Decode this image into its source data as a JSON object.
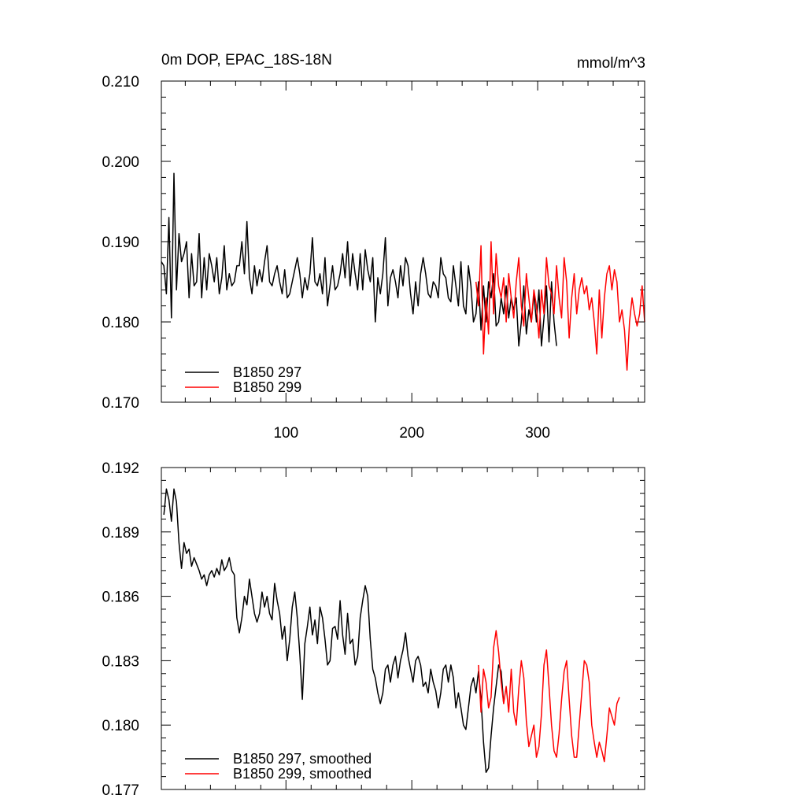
{
  "chart_data": [
    {
      "type": "line",
      "title": "0m DOP, EPAC_18S-18N",
      "units": "mmol/m^3",
      "xlim": [
        1,
        385
      ],
      "ylim": [
        0.17,
        0.21
      ],
      "xticks": [
        100,
        200,
        300
      ],
      "xtick_labels": [
        "100",
        "200",
        "300"
      ],
      "yticks": [
        0.17,
        0.18,
        0.19,
        0.2,
        0.21
      ],
      "ytick_labels": [
        "0.170",
        "0.180",
        "0.190",
        "0.200",
        "0.210"
      ],
      "legend_position": "bottom-left",
      "series": [
        {
          "name": "B1850 297",
          "color": "#000000",
          "x_start": 1,
          "x_step": 2,
          "values": [
            0.1875,
            0.187,
            0.1835,
            0.193,
            0.1805,
            0.1985,
            0.184,
            0.191,
            0.1875,
            0.1885,
            0.19,
            0.183,
            0.1885,
            0.1845,
            0.185,
            0.191,
            0.183,
            0.188,
            0.184,
            0.1885,
            0.187,
            0.185,
            0.188,
            0.1835,
            0.1855,
            0.1895,
            0.184,
            0.186,
            0.1845,
            0.185,
            0.187,
            0.187,
            0.19,
            0.186,
            0.1925,
            0.1855,
            0.1835,
            0.187,
            0.1845,
            0.1865,
            0.185,
            0.1875,
            0.1895,
            0.185,
            0.1845,
            0.186,
            0.187,
            0.185,
            0.1835,
            0.1865,
            0.183,
            0.1835,
            0.185,
            0.1865,
            0.188,
            0.186,
            0.183,
            0.1855,
            0.184,
            0.186,
            0.1905,
            0.185,
            0.1845,
            0.186,
            0.1835,
            0.188,
            0.182,
            0.1845,
            0.187,
            0.184,
            0.1845,
            0.186,
            0.1885,
            0.1855,
            0.19,
            0.1845,
            0.1885,
            0.186,
            0.184,
            0.1885,
            0.184,
            0.189,
            0.1865,
            0.185,
            0.188,
            0.18,
            0.1855,
            0.1835,
            0.186,
            0.1905,
            0.182,
            0.1855,
            0.1865,
            0.185,
            0.183,
            0.187,
            0.1845,
            0.188,
            0.187,
            0.1835,
            0.181,
            0.185,
            0.182,
            0.186,
            0.188,
            0.186,
            0.1835,
            0.183,
            0.185,
            0.1845,
            0.183,
            0.188,
            0.186,
            0.1855,
            0.183,
            0.1825,
            0.187,
            0.1845,
            0.182,
            0.1875,
            0.182,
            0.181,
            0.187,
            0.1845,
            0.18,
            0.181,
            0.185,
            0.179,
            0.1845,
            0.18,
            0.185,
            0.183,
            0.186,
            0.1795,
            0.18,
            0.183,
            0.181,
            0.1845,
            0.1805,
            0.183,
            0.1815,
            0.183,
            0.177,
            0.18,
            0.1845,
            0.1785,
            0.1815,
            0.18,
            0.1835,
            0.18,
            0.184,
            0.177,
            0.1805,
            0.1845,
            0.1775,
            0.185,
            0.18,
            0.177
          ]
        },
        {
          "name": "B1850 299",
          "color": "#ff0000",
          "x_start": 251,
          "x_step": 2,
          "values": [
            0.185,
            0.182,
            0.1895,
            0.176,
            0.183,
            0.1785,
            0.19,
            0.181,
            0.1885,
            0.1845,
            0.183,
            0.1855,
            0.18,
            0.186,
            0.183,
            0.1805,
            0.185,
            0.188,
            0.182,
            0.1795,
            0.186,
            0.183,
            0.18,
            0.184,
            0.182,
            0.178,
            0.184,
            0.181,
            0.188,
            0.1845,
            0.1835,
            0.181,
            0.187,
            0.183,
            0.1805,
            0.188,
            0.185,
            0.178,
            0.183,
            0.186,
            0.181,
            0.184,
            0.1855,
            0.1835,
            0.1845,
            0.1815,
            0.183,
            0.18,
            0.176,
            0.184,
            0.178,
            0.183,
            0.186,
            0.187,
            0.184,
            0.1865,
            0.185,
            0.18,
            0.1815,
            0.179,
            0.174,
            0.18,
            0.183,
            0.181,
            0.1795,
            0.181,
            0.1845,
            0.18
          ]
        }
      ]
    },
    {
      "type": "line",
      "title": "",
      "xlim": [
        1,
        385
      ],
      "ylim": [
        0.177,
        0.192
      ],
      "xticks": [
        100,
        200,
        300
      ],
      "yticks": [
        0.177,
        0.18,
        0.183,
        0.186,
        0.189,
        0.192
      ],
      "ytick_labels": [
        "0.177",
        "0.180",
        "0.183",
        "0.186",
        "0.189",
        "0.192"
      ],
      "legend_position": "bottom-left",
      "series": [
        {
          "name": "B1850 297, smoothed",
          "color": "#000000",
          "x_start": 3,
          "x_step": 2,
          "values": [
            0.1898,
            0.191,
            0.1905,
            0.1895,
            0.191,
            0.1904,
            0.1885,
            0.1873,
            0.1885,
            0.188,
            0.1882,
            0.1874,
            0.1878,
            0.1875,
            0.1872,
            0.1868,
            0.187,
            0.1865,
            0.187,
            0.1872,
            0.1869,
            0.1873,
            0.187,
            0.1877,
            0.1872,
            0.1874,
            0.1878,
            0.1872,
            0.187,
            0.185,
            0.1843,
            0.185,
            0.186,
            0.1856,
            0.1868,
            0.186,
            0.1852,
            0.1848,
            0.1852,
            0.1862,
            0.1855,
            0.186,
            0.1852,
            0.1849,
            0.1866,
            0.1858,
            0.1852,
            0.184,
            0.1846,
            0.183,
            0.184,
            0.1855,
            0.1862,
            0.185,
            0.1833,
            0.1812,
            0.1838,
            0.1846,
            0.1855,
            0.1842,
            0.1849,
            0.1838,
            0.1855,
            0.185,
            0.184,
            0.1828,
            0.183,
            0.1845,
            0.1846,
            0.184,
            0.1858,
            0.1842,
            0.1833,
            0.1852,
            0.1838,
            0.184,
            0.1828,
            0.1832,
            0.185,
            0.1858,
            0.1865,
            0.186,
            0.184,
            0.1826,
            0.1822,
            0.1815,
            0.181,
            0.1815,
            0.1826,
            0.1828,
            0.182,
            0.1828,
            0.1832,
            0.1822,
            0.183,
            0.1835,
            0.1843,
            0.1832,
            0.1826,
            0.182,
            0.183,
            0.1832,
            0.1828,
            0.1818,
            0.182,
            0.1815,
            0.1826,
            0.182,
            0.1816,
            0.1808,
            0.1815,
            0.1826,
            0.1828,
            0.182,
            0.1828,
            0.1822,
            0.1808,
            0.1815,
            0.1808,
            0.18,
            0.1798,
            0.1808,
            0.1818,
            0.1822,
            0.1815,
            0.1825,
            0.1812,
            0.1792,
            0.1778,
            0.178,
            0.1795,
            0.1808,
            0.1818,
            0.1828,
            0.1825,
            0.181
          ]
        },
        {
          "name": "B1850 299, smoothed",
          "color": "#ff0000",
          "x_start": 253,
          "x_step": 2,
          "values": [
            0.1828,
            0.1806,
            0.1826,
            0.182,
            0.1808,
            0.1813,
            0.1836,
            0.1844,
            0.1834,
            0.182,
            0.181,
            0.1818,
            0.1806,
            0.1826,
            0.1806,
            0.18,
            0.1817,
            0.183,
            0.1822,
            0.1802,
            0.179,
            0.1795,
            0.18,
            0.1785,
            0.179,
            0.1805,
            0.1828,
            0.1835,
            0.1818,
            0.18,
            0.1788,
            0.1785,
            0.1796,
            0.1812,
            0.1825,
            0.183,
            0.1812,
            0.1795,
            0.1785,
            0.1785,
            0.18,
            0.1815,
            0.183,
            0.1828,
            0.182,
            0.18,
            0.1792,
            0.1785,
            0.1792,
            0.1788,
            0.1783,
            0.1795,
            0.1808,
            0.1804,
            0.18,
            0.181,
            0.1813
          ]
        }
      ]
    }
  ]
}
